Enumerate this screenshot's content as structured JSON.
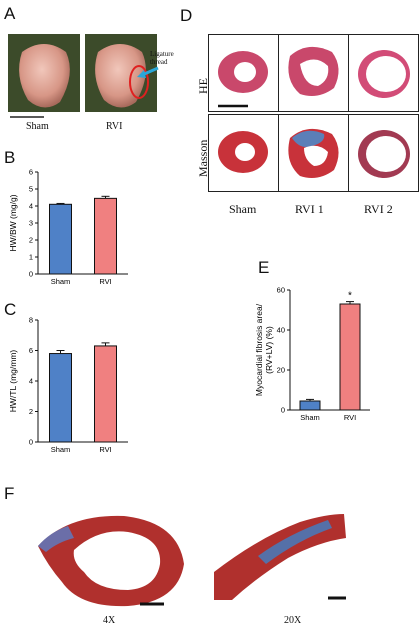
{
  "panels": {
    "A": "A",
    "B": "B",
    "C": "C",
    "D": "D",
    "E": "E",
    "F": "F"
  },
  "panel_a": {
    "sham_label": "Sham",
    "rvi_label": "RVI",
    "annotation": "Ligature thread"
  },
  "panel_d": {
    "row_labels": [
      "HE",
      "Masson"
    ],
    "col_labels": [
      "Sham",
      "RVI 1",
      "RVI 2"
    ]
  },
  "panel_f": {
    "labels": [
      "4X",
      "20X"
    ]
  },
  "chart_data": [
    {
      "panel": "B",
      "type": "bar",
      "categories": [
        "Sham",
        "RVI"
      ],
      "values": [
        4.1,
        4.45
      ],
      "errors": [
        0.05,
        0.12
      ],
      "ylabel": "HW/BW (mg/g)",
      "ylim": [
        0,
        6
      ],
      "yticks": [
        0,
        1,
        2,
        3,
        4,
        5,
        6
      ],
      "colors": [
        "#4f81c7",
        "#f08080"
      ]
    },
    {
      "panel": "C",
      "type": "bar",
      "categories": [
        "Sham",
        "RVI"
      ],
      "values": [
        5.8,
        6.3
      ],
      "errors": [
        0.2,
        0.2
      ],
      "ylabel": "HW/TL (mg/mm)",
      "ylim": [
        0,
        8
      ],
      "yticks": [
        0,
        2,
        4,
        6,
        8
      ],
      "colors": [
        "#4f81c7",
        "#f08080"
      ]
    },
    {
      "panel": "E",
      "type": "bar",
      "categories": [
        "Sham",
        "RVI"
      ],
      "values": [
        4.5,
        53
      ],
      "errors": [
        0.8,
        1.2
      ],
      "ylabel": "Myocardial fibrosis area/ (RV+LV) (%)",
      "ylim": [
        0,
        60
      ],
      "yticks": [
        0,
        20,
        40,
        60
      ],
      "colors": [
        "#4f81c7",
        "#f08080"
      ],
      "annotation": "*"
    }
  ]
}
